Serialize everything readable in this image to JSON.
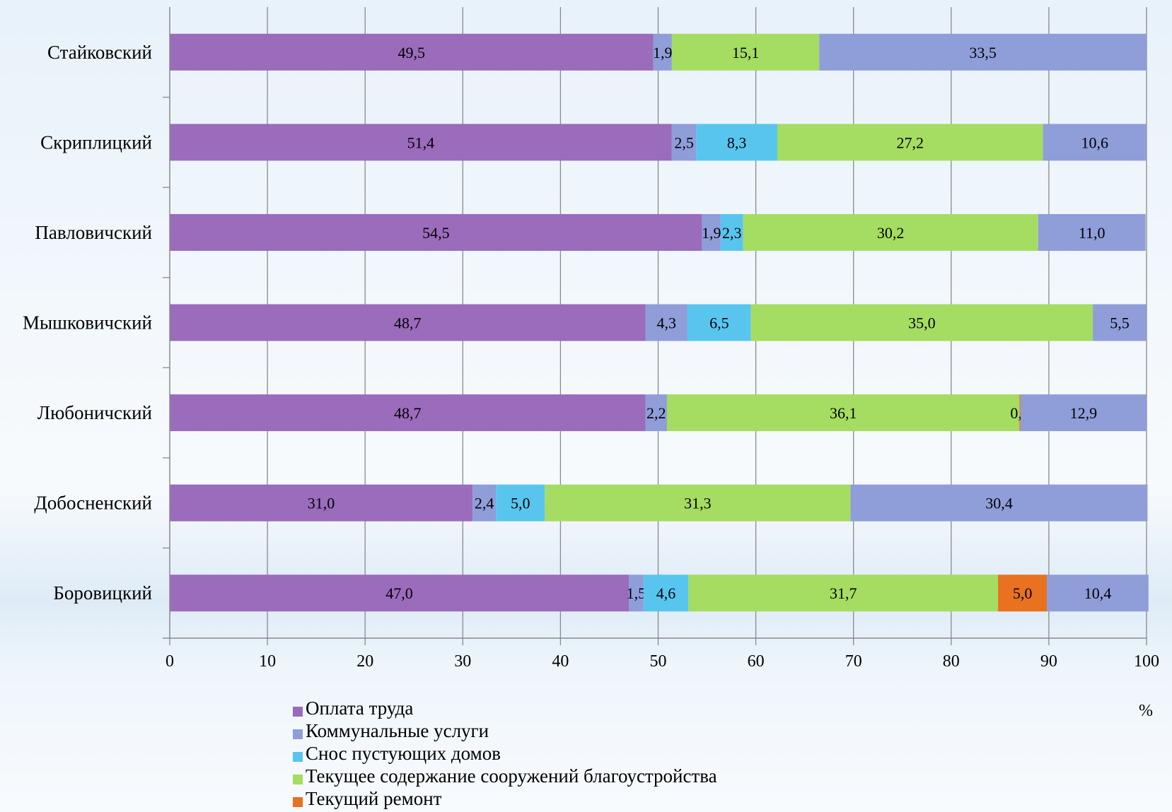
{
  "chart_data": {
    "type": "bar",
    "orientation": "horizontal",
    "stacked": true,
    "categories": [
      "Стайковский",
      "Скриплицкий",
      "Павловичский",
      "Мышковичский",
      "Любоничский",
      "Добосненский",
      "Боровицкий"
    ],
    "series": [
      {
        "name": "Оплата труда",
        "color": "#9b6bbc",
        "values": [
          49.5,
          51.4,
          54.5,
          48.7,
          48.7,
          31.0,
          47.0
        ],
        "labels": [
          "49,5",
          "51,4",
          "54,5",
          "48,7",
          "48,7",
          "31,0",
          "47,0"
        ]
      },
      {
        "name": "Коммунальные услуги",
        "color": "#8f9dd9",
        "values": [
          1.9,
          2.5,
          1.9,
          4.3,
          2.2,
          2.4,
          1.5
        ],
        "labels": [
          "1,9",
          "2,5",
          "1,9",
          "4,3",
          "2,2",
          "2,4",
          "1,5"
        ]
      },
      {
        "name": "Снос пустующих домов",
        "color": "#58c5ef",
        "values": [
          0,
          8.3,
          2.3,
          6.5,
          0,
          5.0,
          4.6
        ],
        "labels": [
          "",
          "8,3",
          "2,3",
          "6,5",
          "",
          "5,0",
          "4,6"
        ]
      },
      {
        "name": "Текущее содержание сооружений благоустройства",
        "color": "#a5dc62",
        "values": [
          15.1,
          27.2,
          30.2,
          35.0,
          36.1,
          31.3,
          31.7
        ],
        "labels": [
          "15,1",
          "27,2",
          "30,2",
          "35,0",
          "36,1",
          "31,3",
          "31,7"
        ]
      },
      {
        "name": "Текущий ремонт",
        "color": "#e8721f",
        "values": [
          0,
          0,
          0,
          0,
          0.1,
          0,
          5.0
        ],
        "labels": [
          "",
          "",
          "",
          "",
          "0,1",
          "",
          "5,0"
        ]
      },
      {
        "color": "#8f9dd9",
        "values": [
          33.5,
          10.6,
          11.0,
          5.5,
          12.9,
          30.4,
          10.4
        ],
        "labels": [
          "33,5",
          "10,6",
          "11,0",
          "5,5",
          "12,9",
          "30,4",
          "10,4"
        ]
      }
    ],
    "xlim": [
      0,
      100
    ],
    "xticks": [
      0,
      10,
      20,
      30,
      40,
      50,
      60,
      70,
      80,
      90,
      100
    ],
    "xtick_labels": [
      "0",
      "10",
      "20",
      "30",
      "40",
      "50",
      "60",
      "70",
      "80",
      "90",
      "100"
    ],
    "xlabel": "%",
    "grid": true,
    "legend_position": "bottom"
  },
  "legend": [
    {
      "label": "Оплата труда",
      "color": "#9b6bbc"
    },
    {
      "label": "Коммунальные услуги",
      "color": "#8f9dd9"
    },
    {
      "label": "Снос пустующих домов",
      "color": "#58c5ef"
    },
    {
      "label": "Текущее содержание сооружений благоустройства",
      "color": "#a5dc62"
    },
    {
      "label": "Текущий ремонт",
      "color": "#e8721f"
    }
  ],
  "unit_label": "%"
}
